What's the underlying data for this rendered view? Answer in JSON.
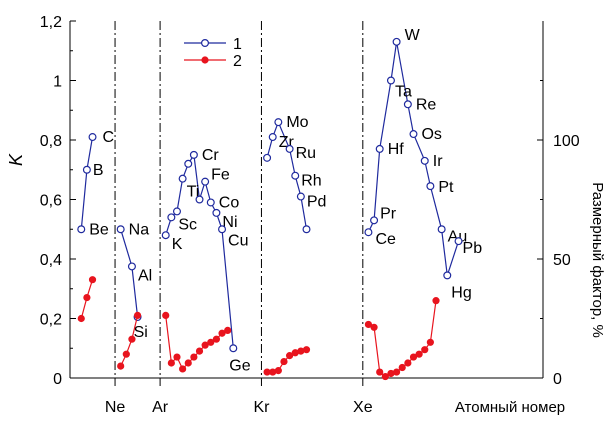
{
  "chart_data": {
    "type": "line",
    "ylabel": "K",
    "y2label": "Размерный фактор, %",
    "xlabel": "Атомный номер",
    "ylim": [
      0,
      1.2
    ],
    "y2lim": [
      0,
      150
    ],
    "yticks": [
      "0",
      "0,2",
      "0,4",
      "0,6",
      "0,8",
      "1",
      "1,2"
    ],
    "y2ticks": [
      "0",
      "50",
      "100"
    ],
    "x_range": [
      2,
      86
    ],
    "grid": false,
    "legend_position": "top-center",
    "noble_gases": [
      {
        "label": "Ne",
        "z": 10
      },
      {
        "label": "Ar",
        "z": 18
      },
      {
        "label": "Kr",
        "z": 36
      },
      {
        "label": "Xe",
        "z": 54
      }
    ],
    "series": [
      {
        "name": "1",
        "color": "#1f2a9e",
        "marker": "open-circle",
        "axis": "left",
        "segments": [
          [
            {
              "z": 4,
              "y": 0.5,
              "label": "Be"
            },
            {
              "z": 5,
              "y": 0.7,
              "label": "B"
            },
            {
              "z": 6,
              "y": 0.81,
              "label": "C"
            }
          ],
          [
            {
              "z": 11,
              "y": 0.5,
              "label": "Na"
            },
            {
              "z": 13,
              "y": 0.375,
              "label": "Al"
            },
            {
              "z": 14,
              "y": 0.205,
              "label": "Si"
            }
          ],
          [
            {
              "z": 19,
              "y": 0.48,
              "label": "K"
            },
            {
              "z": 20,
              "y": 0.54,
              "label": "Sc"
            },
            {
              "z": 21,
              "y": 0.56
            },
            {
              "z": 22,
              "y": 0.67,
              "label": "Ti"
            },
            {
              "z": 23,
              "y": 0.72
            },
            {
              "z": 24,
              "y": 0.75,
              "label": "Cr"
            },
            {
              "z": 25,
              "y": 0.6
            },
            {
              "z": 26,
              "y": 0.66,
              "label": "Fe"
            },
            {
              "z": 27,
              "y": 0.59,
              "label": "Co"
            },
            {
              "z": 28,
              "y": 0.555,
              "label": "Ni"
            },
            {
              "z": 29,
              "y": 0.5,
              "label": "Cu"
            },
            {
              "z": 31,
              "y": 0.1,
              "label": "Ge"
            }
          ],
          [
            {
              "z": 37,
              "y": 0.74
            },
            {
              "z": 38,
              "y": 0.81,
              "label": "Zr"
            },
            {
              "z": 39,
              "y": 0.86,
              "label": "Mo"
            },
            {
              "z": 41,
              "y": 0.77,
              "label": "Ru"
            },
            {
              "z": 42,
              "y": 0.68,
              "label": "Rh"
            },
            {
              "z": 43,
              "y": 0.61,
              "label": "Pd"
            },
            {
              "z": 44,
              "y": 0.5
            }
          ],
          [
            {
              "z": 55,
              "y": 0.49,
              "label": "Ce"
            },
            {
              "z": 56,
              "y": 0.53,
              "label": "Pr"
            },
            {
              "z": 57,
              "y": 0.77,
              "label": "Hf"
            },
            {
              "z": 59,
              "y": 1.0,
              "label": "Ta"
            },
            {
              "z": 60,
              "y": 1.13,
              "label": "W"
            },
            {
              "z": 62,
              "y": 0.92,
              "label": "Re"
            },
            {
              "z": 63,
              "y": 0.82,
              "label": "Os"
            },
            {
              "z": 65,
              "y": 0.73,
              "label": "Ir"
            },
            {
              "z": 66,
              "y": 0.645,
              "label": "Pt"
            },
            {
              "z": 68,
              "y": 0.5,
              "label": "Au"
            },
            {
              "z": 69,
              "y": 0.345,
              "label": "Hg"
            },
            {
              "z": 71,
              "y": 0.46,
              "label": "Pb"
            }
          ]
        ]
      },
      {
        "name": "2",
        "color": "#e8141e",
        "marker": "filled-circle",
        "axis": "right",
        "segments": [
          [
            {
              "z": 4,
              "y": 25
            },
            {
              "z": 5,
              "y": 33.8
            },
            {
              "z": 6,
              "y": 41.3
            }
          ],
          [
            {
              "z": 11,
              "y": 5
            },
            {
              "z": 12,
              "y": 10
            },
            {
              "z": 13,
              "y": 16.3
            },
            {
              "z": 14,
              "y": 26.3
            }
          ],
          [
            {
              "z": 19,
              "y": 26.3
            },
            {
              "z": 20,
              "y": 6.3
            },
            {
              "z": 21,
              "y": 8.8
            },
            {
              "z": 22,
              "y": 3.8
            },
            {
              "z": 23,
              "y": 6.3
            },
            {
              "z": 24,
              "y": 8.8
            },
            {
              "z": 25,
              "y": 11.3
            },
            {
              "z": 26,
              "y": 13.8
            },
            {
              "z": 27,
              "y": 15
            },
            {
              "z": 28,
              "y": 16.3
            },
            {
              "z": 29,
              "y": 18.8
            },
            {
              "z": 30,
              "y": 20
            }
          ],
          [
            {
              "z": 37,
              "y": 2.5
            },
            {
              "z": 38,
              "y": 2.5
            },
            {
              "z": 39,
              "y": 3.1
            },
            {
              "z": 40,
              "y": 6.9
            },
            {
              "z": 41,
              "y": 9.4
            },
            {
              "z": 42,
              "y": 10.6
            },
            {
              "z": 43,
              "y": 11.3
            },
            {
              "z": 44,
              "y": 11.9
            }
          ],
          [
            {
              "z": 55,
              "y": 22.5
            },
            {
              "z": 56,
              "y": 21.3
            },
            {
              "z": 57,
              "y": 2.5
            },
            {
              "z": 58,
              "y": 0.6
            },
            {
              "z": 59,
              "y": 1.9
            },
            {
              "z": 60,
              "y": 2.5
            },
            {
              "z": 61,
              "y": 4.4
            },
            {
              "z": 62,
              "y": 6.3
            },
            {
              "z": 63,
              "y": 8.8
            },
            {
              "z": 64,
              "y": 10
            },
            {
              "z": 65,
              "y": 11.9
            },
            {
              "z": 66,
              "y": 15
            },
            {
              "z": 67,
              "y": 32.5
            }
          ]
        ]
      }
    ]
  }
}
